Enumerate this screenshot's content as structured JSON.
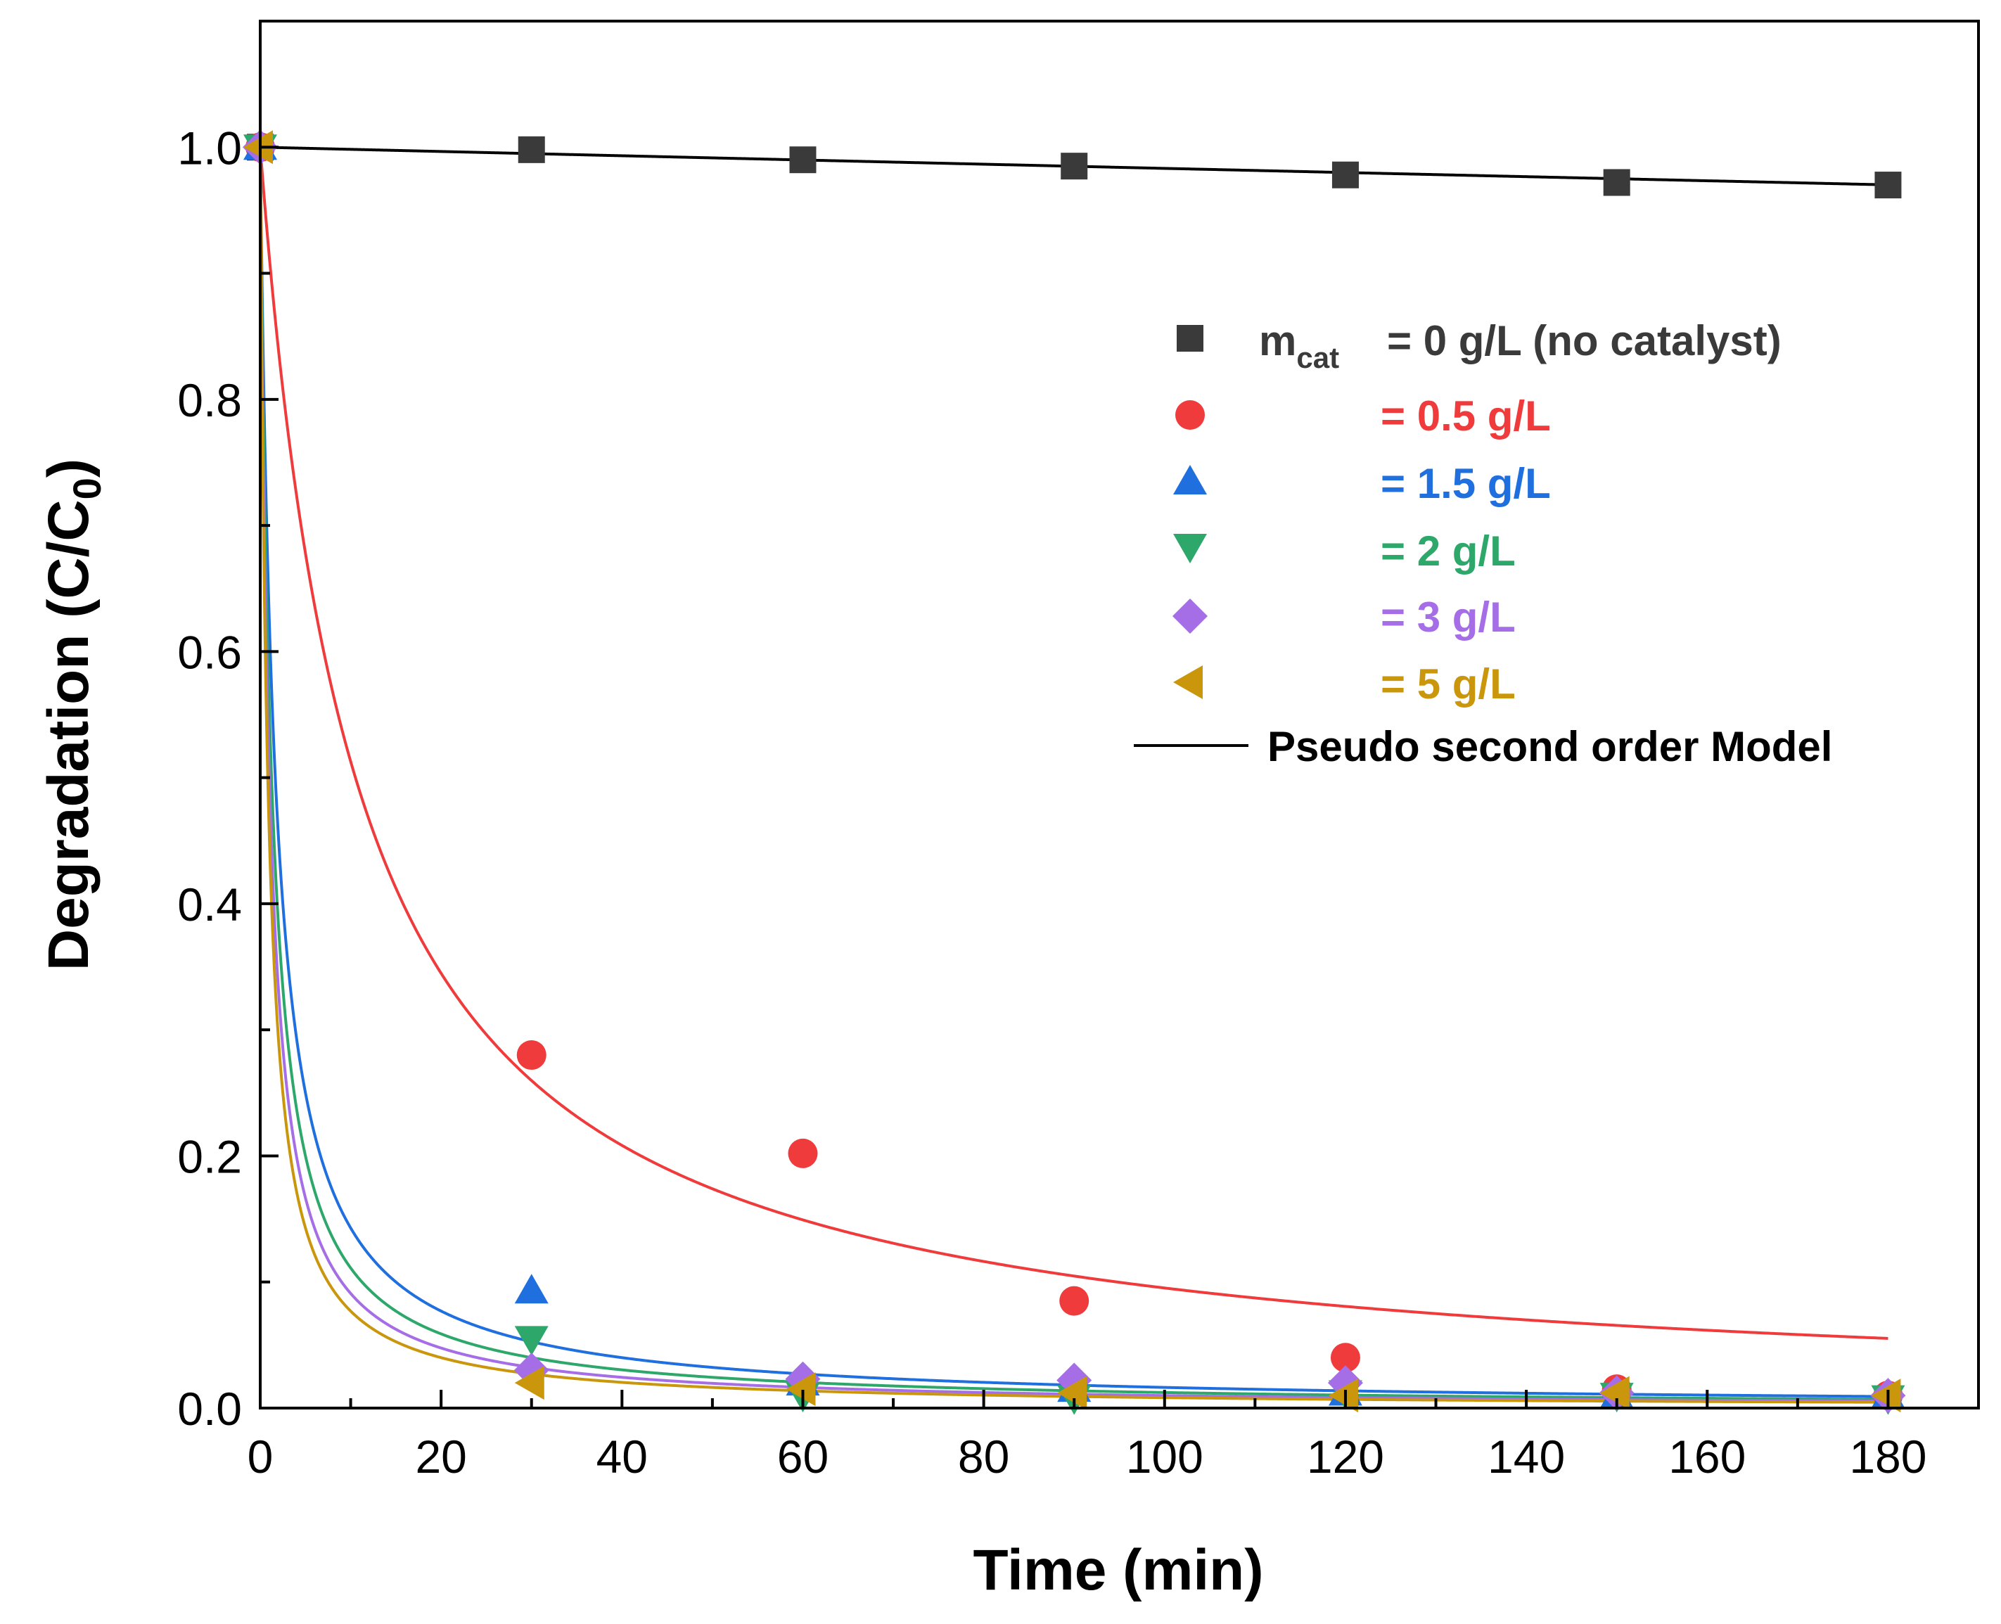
{
  "chart_data": {
    "type": "scatter",
    "xlabel": "Time (min)",
    "ylabel": {
      "main": "Degradation (C/C",
      "sub": "0",
      "close": ")"
    },
    "xlim": [
      0,
      190
    ],
    "ylim": [
      0,
      1.1
    ],
    "xticks": [
      0,
      20,
      40,
      60,
      80,
      100,
      120,
      140,
      160,
      180
    ],
    "yticks": [
      0.0,
      0.2,
      0.4,
      0.6,
      0.8,
      1.0
    ],
    "xtick_labels": [
      "0",
      "20",
      "40",
      "60",
      "80",
      "100",
      "120",
      "140",
      "160",
      "180"
    ],
    "ytick_labels": [
      "0.0",
      "0.2",
      "0.4",
      "0.6",
      "0.8",
      "1.0"
    ],
    "x": [
      0,
      30,
      60,
      90,
      120,
      150,
      180
    ],
    "series": [
      {
        "name": "0 g/L (no catalyst)",
        "marker": "square",
        "color": "#3a3a3a",
        "values": [
          1.0,
          0.998,
          0.99,
          0.985,
          0.978,
          0.972,
          0.97
        ],
        "fit_k": 0.000171
      },
      {
        "name": "0.5 g/L",
        "marker": "circle",
        "color": "#ef3b3b",
        "values": [
          1.0,
          0.28,
          0.202,
          0.085,
          0.04,
          0.015,
          0.01
        ],
        "fit_k": 0.095
      },
      {
        "name": "1.5 g/L",
        "marker": "triangle-up",
        "color": "#1f6fdf",
        "values": [
          1.0,
          0.093,
          0.02,
          0.015,
          0.012,
          0.01,
          0.01
        ],
        "fit_k": 0.6
      },
      {
        "name": "2 g/L",
        "marker": "triangle-down",
        "color": "#2ea86a",
        "values": [
          1.0,
          0.055,
          0.01,
          0.008,
          0.012,
          0.01,
          0.008
        ],
        "fit_k": 0.8
      },
      {
        "name": "3 g/L",
        "marker": "diamond",
        "color": "#a56ee6",
        "values": [
          1.0,
          0.03,
          0.023,
          0.022,
          0.02,
          0.012,
          0.01
        ],
        "fit_k": 1.0
      },
      {
        "name": "5 g/L",
        "marker": "triangle-left",
        "color": "#c9960c",
        "values": [
          1.0,
          0.02,
          0.015,
          0.012,
          0.01,
          0.012,
          0.01
        ],
        "fit_k": 1.2
      }
    ],
    "fit_line": {
      "label": "Pseudo second order Model",
      "color": "#000000"
    },
    "legend": {
      "prefix": "m",
      "prefix_sub": "cat",
      "entries": [
        "= 0 g/L (no catalyst)",
        "= 0.5 g/L",
        "= 1.5 g/L",
        "= 2 g/L",
        "= 3 g/L",
        "= 5 g/L"
      ],
      "position": "top-right"
    },
    "grid": false
  }
}
